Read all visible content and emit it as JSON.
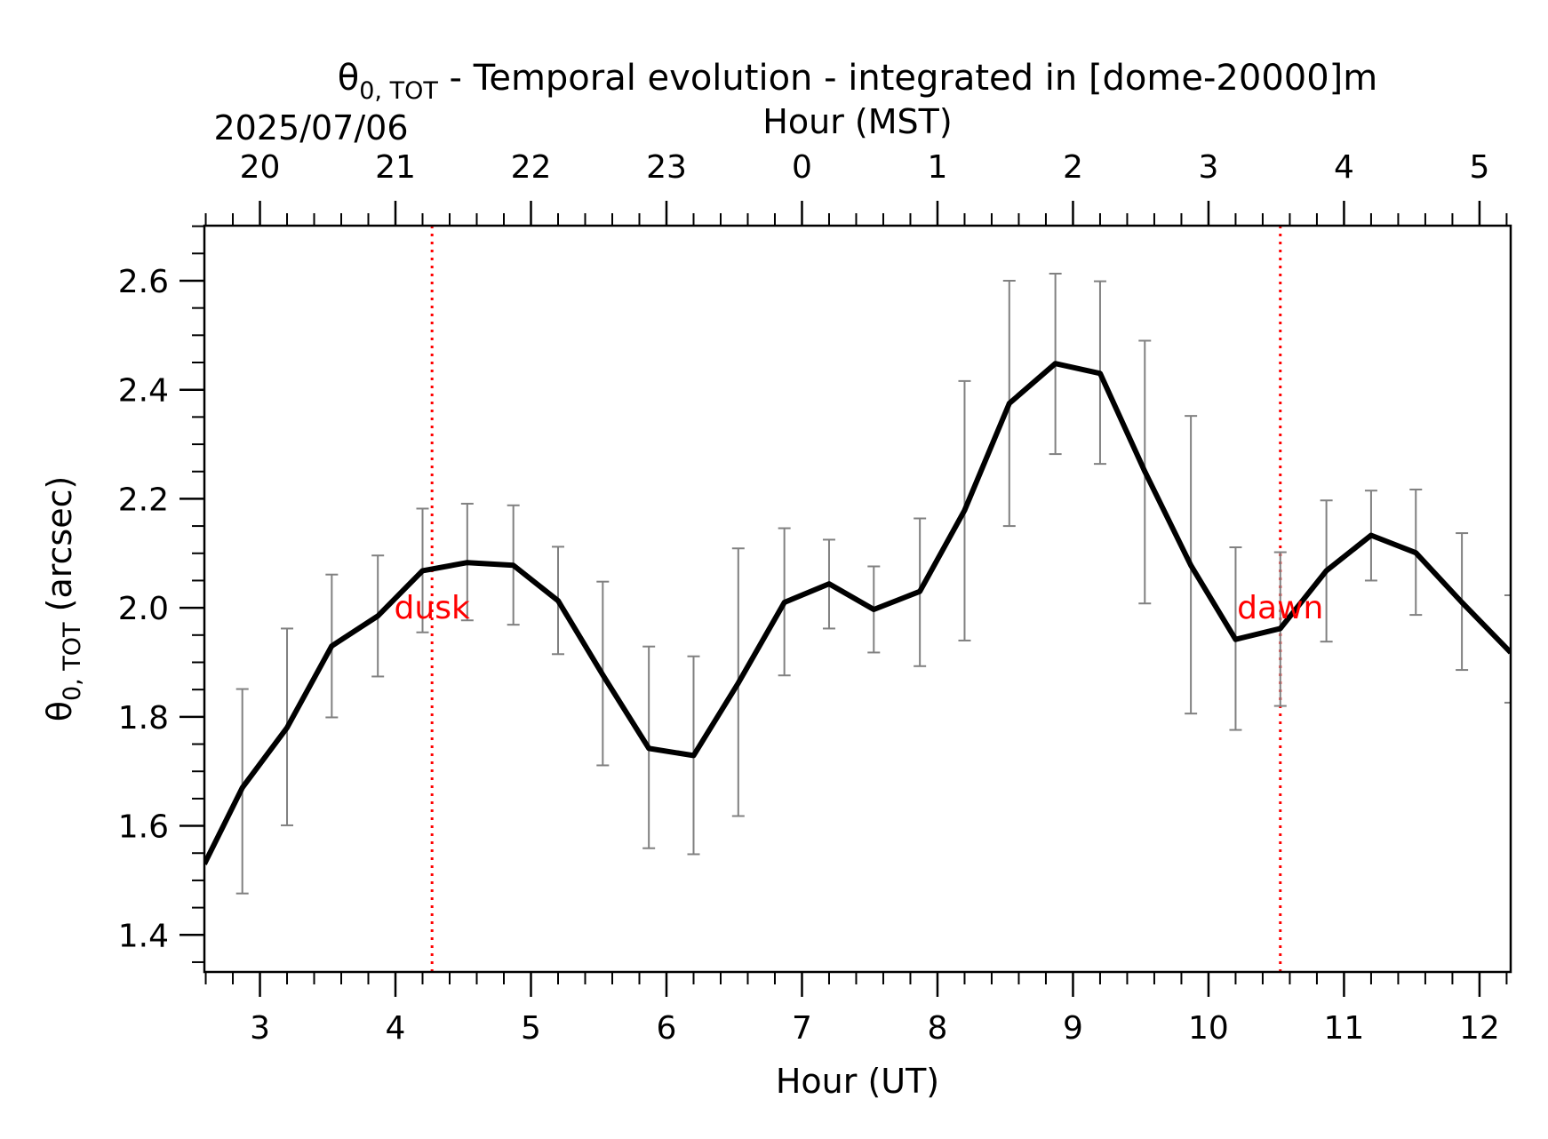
{
  "chart_data": {
    "type": "line",
    "title_symbol": "θ",
    "title_subscript": "0, TOT",
    "title_rest": " - Temporal evolution - integrated in [dome-20000]m",
    "date_label": "2025/07/06",
    "xlabel": "Hour (UT)",
    "x2label": "Hour (MST)",
    "ylabel_symbol": "θ",
    "ylabel_subscript": "0, TOT",
    "ylabel_rest": " (arcsec)",
    "xlim": [
      2.59,
      12.23
    ],
    "ylim": [
      1.332,
      2.701
    ],
    "x_ticks": [
      3,
      4,
      5,
      6,
      7,
      8,
      9,
      10,
      11,
      12
    ],
    "y_ticks": [
      1.4,
      1.6,
      1.8,
      2.0,
      2.2,
      2.4,
      2.6
    ],
    "y_tick_labels": [
      "1.4",
      "1.6",
      "1.8",
      "2.0",
      "2.2",
      "2.4",
      "2.6"
    ],
    "mst_ticks": [
      {
        "ut": 3,
        "label": "20"
      },
      {
        "ut": 4,
        "label": "21"
      },
      {
        "ut": 5,
        "label": "22"
      },
      {
        "ut": 6,
        "label": "23"
      },
      {
        "ut": 7,
        "label": "0"
      },
      {
        "ut": 8,
        "label": "1"
      },
      {
        "ut": 9,
        "label": "2"
      },
      {
        "ut": 10,
        "label": "3"
      },
      {
        "ut": 11,
        "label": "4"
      },
      {
        "ut": 12,
        "label": "5"
      }
    ],
    "series": [
      {
        "color": "#000000",
        "x": [
          2.59,
          2.87,
          3.2,
          3.53,
          3.87,
          4.2,
          4.53,
          4.87,
          5.2,
          5.53,
          5.87,
          6.2,
          6.53,
          6.87,
          7.2,
          7.53,
          7.87,
          8.2,
          8.53,
          8.87,
          9.2,
          9.53,
          9.87,
          10.2,
          10.53,
          10.87,
          11.2,
          11.53,
          11.87,
          12.23
        ],
        "y": [
          1.53,
          1.67,
          1.78,
          1.93,
          1.985,
          2.068,
          2.083,
          2.078,
          2.013,
          1.877,
          1.742,
          1.729,
          1.862,
          2.01,
          2.044,
          1.997,
          2.03,
          2.179,
          2.375,
          2.448,
          2.43,
          2.25,
          2.078,
          1.942,
          1.962,
          2.068,
          2.133,
          2.101,
          2.01,
          1.918
        ],
        "err_low": [
          null,
          1.476,
          1.601,
          1.799,
          1.874,
          1.955,
          1.977,
          1.969,
          1.915,
          1.711,
          1.559,
          1.548,
          1.618,
          1.876,
          1.962,
          1.918,
          1.893,
          1.94,
          2.15,
          2.282,
          2.264,
          2.008,
          1.806,
          1.776,
          1.82,
          1.938,
          2.05,
          1.987,
          1.886,
          1.826
        ],
        "err_high": [
          null,
          1.851,
          1.962,
          2.061,
          2.096,
          2.182,
          2.191,
          2.188,
          2.112,
          2.048,
          1.929,
          1.911,
          2.109,
          2.146,
          2.125,
          2.076,
          2.164,
          2.416,
          2.6,
          2.613,
          2.599,
          2.49,
          2.352,
          2.111,
          2.102,
          2.197,
          2.215,
          2.217,
          2.137,
          2.023
        ]
      }
    ],
    "error_bar_color": "#808080",
    "markers": [
      {
        "x": 4.27,
        "label": "dusk",
        "label_y": 2.0,
        "color": "#ff0000"
      },
      {
        "x": 10.53,
        "label": "dawn",
        "label_y": 2.0,
        "color": "#ff0000"
      }
    ],
    "grid": false,
    "legend": "none"
  }
}
